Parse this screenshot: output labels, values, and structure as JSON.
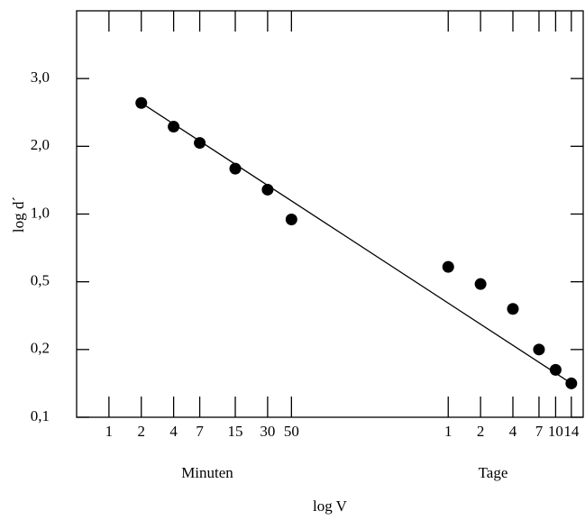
{
  "chart_data": {
    "type": "scatter",
    "x_label": "log V",
    "y_label": "log d´",
    "x_groups": [
      "Minuten",
      "Tage"
    ],
    "x": [
      2,
      4,
      7,
      15,
      30,
      50,
      1440,
      2880,
      5760,
      10080,
      14400,
      20160
    ],
    "series": [
      {
        "color": "#000000",
        "values": [
          2.64,
          2.29,
          2.05,
          1.67,
          1.36,
          0.96,
          0.61,
          0.49,
          0.38,
          0.2,
          0.17,
          0.15
        ]
      }
    ],
    "xscale": "log",
    "xlim": [
      0.5,
      26000
    ],
    "xticks": [
      1,
      2,
      4,
      7,
      15,
      30,
      50,
      {
        "value": 1440,
        "label": "1"
      },
      {
        "value": 2880,
        "label": "2"
      },
      {
        "value": 5760,
        "label": "4"
      },
      {
        "value": 10080,
        "label": "7"
      },
      {
        "value": 14400,
        "label": "10"
      },
      {
        "value": 20160,
        "label": "14"
      }
    ],
    "ylim": [
      0.1,
      4.0
    ],
    "yticks": [
      {
        "value": 0.1,
        "label": "0,1"
      },
      {
        "value": 0.2,
        "label": "0,2"
      },
      {
        "value": 0.5,
        "label": "0,5"
      },
      {
        "value": 1.0,
        "label": "1,0"
      },
      {
        "value": 2.0,
        "label": "2,0"
      },
      {
        "value": 3.0,
        "label": "3,0"
      }
    ],
    "grid": false
  }
}
